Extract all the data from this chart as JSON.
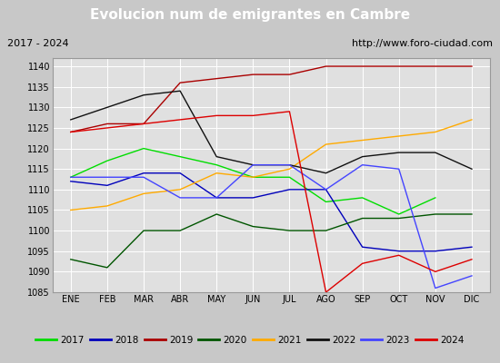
{
  "title": "Evolucion num de emigrantes en Cambre",
  "subtitle_left": "2017 - 2024",
  "subtitle_right": "http://www.foro-ciudad.com",
  "months": [
    "ENE",
    "FEB",
    "MAR",
    "ABR",
    "MAY",
    "JUN",
    "JUL",
    "AGO",
    "SEP",
    "OCT",
    "NOV",
    "DIC"
  ],
  "ylim": [
    1085,
    1142
  ],
  "yticks": [
    1085,
    1090,
    1095,
    1100,
    1105,
    1110,
    1115,
    1120,
    1125,
    1130,
    1135,
    1140
  ],
  "series": {
    "2017": {
      "color": "#00dd00",
      "data": [
        1113,
        1117,
        1120,
        1118,
        1116,
        1113,
        1113,
        1107,
        1108,
        1104,
        1108,
        null
      ]
    },
    "2018": {
      "color": "#0000bb",
      "data": [
        1112,
        1111,
        1114,
        1114,
        1108,
        1108,
        1110,
        1110,
        1096,
        1095,
        1095,
        1096
      ]
    },
    "2019": {
      "color": "#aa0000",
      "data": [
        1124,
        1126,
        1126,
        1136,
        1137,
        1138,
        1138,
        1140,
        1140,
        1140,
        1140,
        1140
      ]
    },
    "2020": {
      "color": "#005500",
      "data": [
        1093,
        1091,
        1100,
        1100,
        1104,
        1101,
        1100,
        1100,
        1103,
        1103,
        1104,
        1104
      ]
    },
    "2021": {
      "color": "#ffaa00",
      "data": [
        1105,
        1106,
        1109,
        1110,
        1114,
        1113,
        1115,
        1121,
        1122,
        1123,
        1124,
        1127
      ]
    },
    "2022": {
      "color": "#111111",
      "data": [
        1127,
        1130,
        1133,
        1134,
        1118,
        1116,
        1116,
        1114,
        1118,
        1119,
        1119,
        1115
      ]
    },
    "2023": {
      "color": "#4444ff",
      "data": [
        1113,
        1113,
        1113,
        1108,
        1108,
        1116,
        1116,
        1110,
        1116,
        1115,
        1086,
        1089
      ]
    },
    "2024": {
      "color": "#dd0000",
      "data": [
        1124,
        1125,
        1126,
        1127,
        1128,
        1128,
        1129,
        1085,
        1092,
        1094,
        1090,
        1093
      ]
    }
  },
  "title_bg": "#5599dd",
  "title_color": "#ffffff",
  "plot_bg": "#e0e0e0",
  "fig_bg": "#c8c8c8",
  "subtitle_bg": "#d0d0d0",
  "legend_bg": "#ffffff",
  "border_color": "#999999",
  "grid_color": "#ffffff"
}
